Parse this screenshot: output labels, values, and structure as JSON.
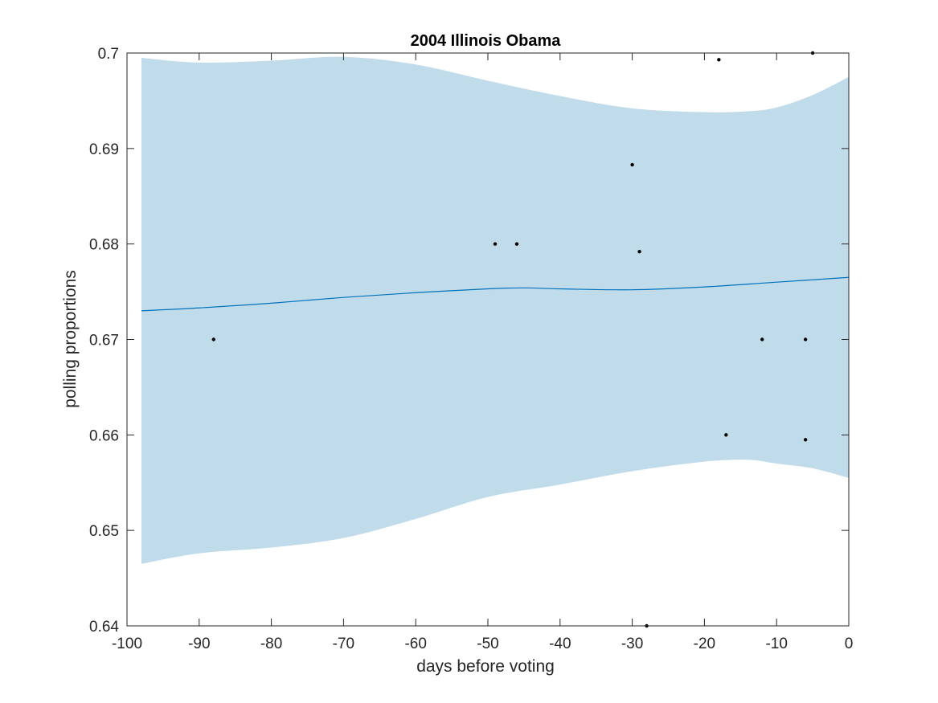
{
  "chart_data": {
    "type": "scatter",
    "title": "2004 Illinois Obama",
    "xlabel": "days before voting",
    "ylabel": "polling proportions",
    "xlim": [
      -100,
      0
    ],
    "ylim": [
      0.64,
      0.7
    ],
    "xticks": [
      -100,
      -90,
      -80,
      -70,
      -60,
      -50,
      -40,
      -30,
      -20,
      -10,
      0
    ],
    "yticks": [
      0.64,
      0.65,
      0.66,
      0.67,
      0.68,
      0.69,
      0.7
    ],
    "ytick_labels": [
      "0.64",
      "0.65",
      "0.66",
      "0.67",
      "0.68",
      "0.69",
      "0.7"
    ],
    "grid": false,
    "colors": {
      "band": "#c0dcea",
      "line": "#0072bd",
      "points": "#000000",
      "axes": "#262626"
    },
    "points": {
      "x": [
        -88,
        -49,
        -46,
        -30,
        -29,
        -28,
        -18,
        -17,
        -12,
        -6,
        -6,
        -5
      ],
      "y": [
        0.67,
        0.68,
        0.68,
        0.6883,
        0.6792,
        0.64,
        0.6993,
        0.66,
        0.67,
        0.67,
        0.6595,
        0.7
      ]
    },
    "trend": {
      "x": [
        -98,
        -90,
        -80,
        -70,
        -60,
        -50,
        -45,
        -40,
        -30,
        -20,
        -10,
        0
      ],
      "y": [
        0.673,
        0.6733,
        0.6738,
        0.6744,
        0.6749,
        0.6753,
        0.6754,
        0.6753,
        0.6752,
        0.6755,
        0.676,
        0.6765
      ]
    },
    "band": {
      "x": [
        -98,
        -90,
        -80,
        -70,
        -60,
        -50,
        -40,
        -30,
        -20,
        -14,
        -10,
        -5,
        0
      ],
      "upper": [
        0.6995,
        0.699,
        0.6992,
        0.6996,
        0.6988,
        0.6971,
        0.6955,
        0.6942,
        0.6938,
        0.6939,
        0.6943,
        0.6956,
        0.6975
      ],
      "lower": [
        0.6465,
        0.6476,
        0.6482,
        0.6492,
        0.6512,
        0.6535,
        0.6548,
        0.6562,
        0.6572,
        0.6574,
        0.657,
        0.6565,
        0.6555
      ]
    }
  }
}
